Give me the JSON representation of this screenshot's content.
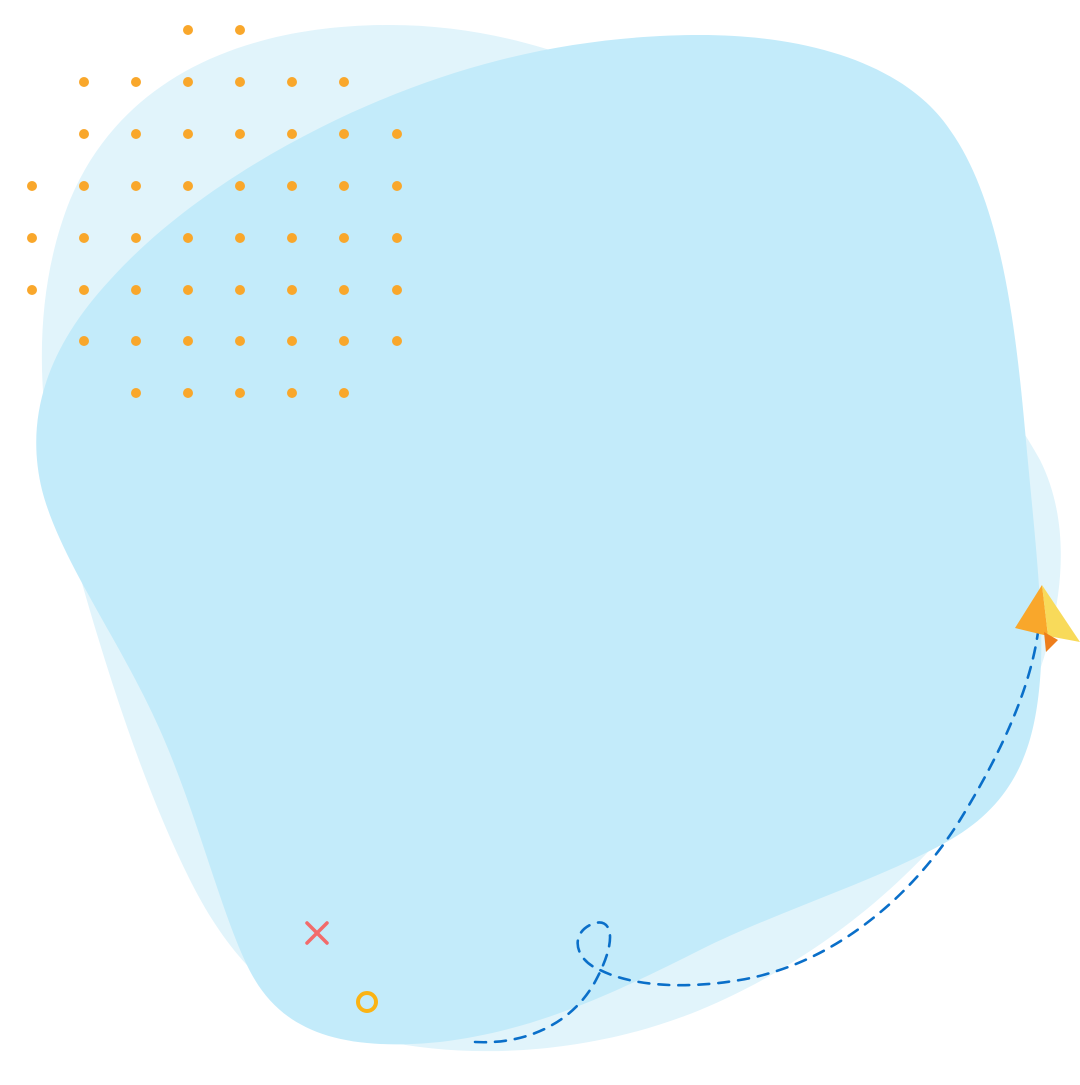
{
  "illustration": {
    "colors": {
      "background": "#ffffff",
      "back_blob": "#e1f4fb",
      "front_blob": "#c3ebfa",
      "dots": "#f9a72b",
      "cross": "#f26b6b",
      "ring": "#fbb314",
      "dashed_path": "#0a6fc9",
      "plane_left": "#f9a72b",
      "plane_right": "#f8da5a",
      "plane_fold": "#ee7e1c"
    },
    "icons": [
      "dot-grid-pattern",
      "cross-icon",
      "ring-icon",
      "dashed-flight-path",
      "paper-plane-icon"
    ]
  }
}
